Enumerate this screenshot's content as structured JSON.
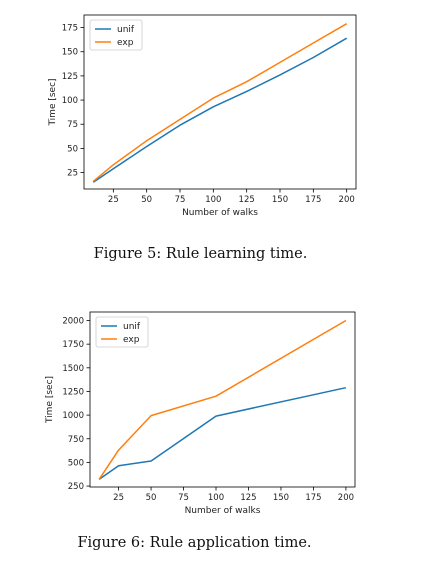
{
  "chart_data": [
    {
      "type": "line",
      "x": [
        10,
        25,
        50,
        75,
        100,
        125,
        150,
        175,
        200
      ],
      "series": [
        {
          "name": "unif",
          "color": "#1f77b4",
          "values": [
            15,
            29,
            52,
            74,
            93,
            109,
            126,
            144,
            164
          ]
        },
        {
          "name": "exp",
          "color": "#ff7f0e",
          "values": [
            16,
            33,
            58,
            80,
            102,
            119,
            139,
            159,
            179
          ]
        }
      ],
      "xlabel": "Number of walks",
      "ylabel": "Time [sec]",
      "xlim": [
        3,
        207
      ],
      "ylim": [
        8,
        188
      ],
      "xticks": [
        25,
        50,
        75,
        100,
        125,
        150,
        175,
        200
      ],
      "yticks": [
        25,
        50,
        75,
        100,
        125,
        150,
        175
      ],
      "legend": "top-left",
      "grid": false
    },
    {
      "type": "line",
      "x": [
        10,
        25,
        50,
        100,
        200
      ],
      "series": [
        {
          "name": "unif",
          "color": "#1f77b4",
          "values": [
            320,
            465,
            515,
            990,
            1290
          ]
        },
        {
          "name": "exp",
          "color": "#ff7f0e",
          "values": [
            320,
            630,
            995,
            1200,
            2000
          ]
        }
      ],
      "xlabel": "Number of walks",
      "ylabel": "Time [sec]",
      "xlim": [
        3,
        207
      ],
      "ylim": [
        240,
        2090
      ],
      "xticks": [
        25,
        50,
        75,
        100,
        125,
        150,
        175,
        200
      ],
      "yticks": [
        250,
        500,
        750,
        1000,
        1250,
        1500,
        1750,
        2000
      ],
      "legend": "top-left",
      "grid": false
    }
  ],
  "captions": [
    "Figure 5: Rule learning time.",
    "Figure 6: Rule application time."
  ]
}
